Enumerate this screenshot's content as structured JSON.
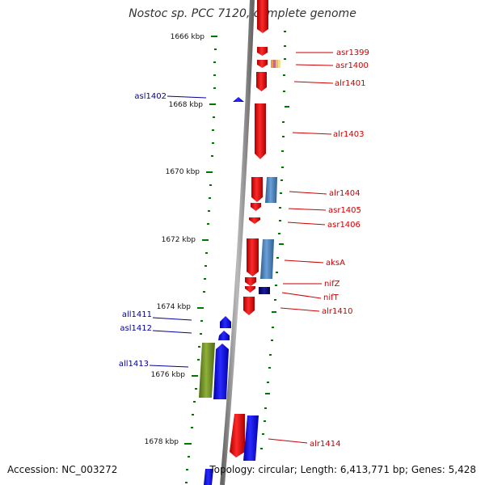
{
  "title": "Nostoc sp. PCC 7120, complete genome",
  "footer": {
    "accession": "Accession: NC_003272",
    "stats": "Topology: circular; Length: 6,413,771 bp; Genes: 5,428"
  },
  "colors": {
    "forward": "#ff0000",
    "reverse": "#0000ff",
    "label_forward": "#cc0000",
    "label_reverse": "#000099",
    "scale": "#007700",
    "feature_blue": "#4a86c8",
    "feature_olive": "#6f8f2a",
    "feature_navy": "#000080",
    "backbone": "#888888"
  },
  "scale_labels": [
    "1666 kbp",
    "1668 kbp",
    "1670 kbp",
    "1672 kbp",
    "1674 kbp",
    "1676 kbp",
    "1678 kbp"
  ],
  "gene_labels_left": [
    "asl1402",
    "all1411",
    "asl1412",
    "all1413"
  ],
  "gene_labels_right": [
    "asr1399",
    "asr1400",
    "alr1401",
    "alr1403",
    "alr1404",
    "asr1405",
    "asr1406",
    "aksA",
    "nifZ",
    "nifT",
    "alr1410",
    "alr1414"
  ]
}
